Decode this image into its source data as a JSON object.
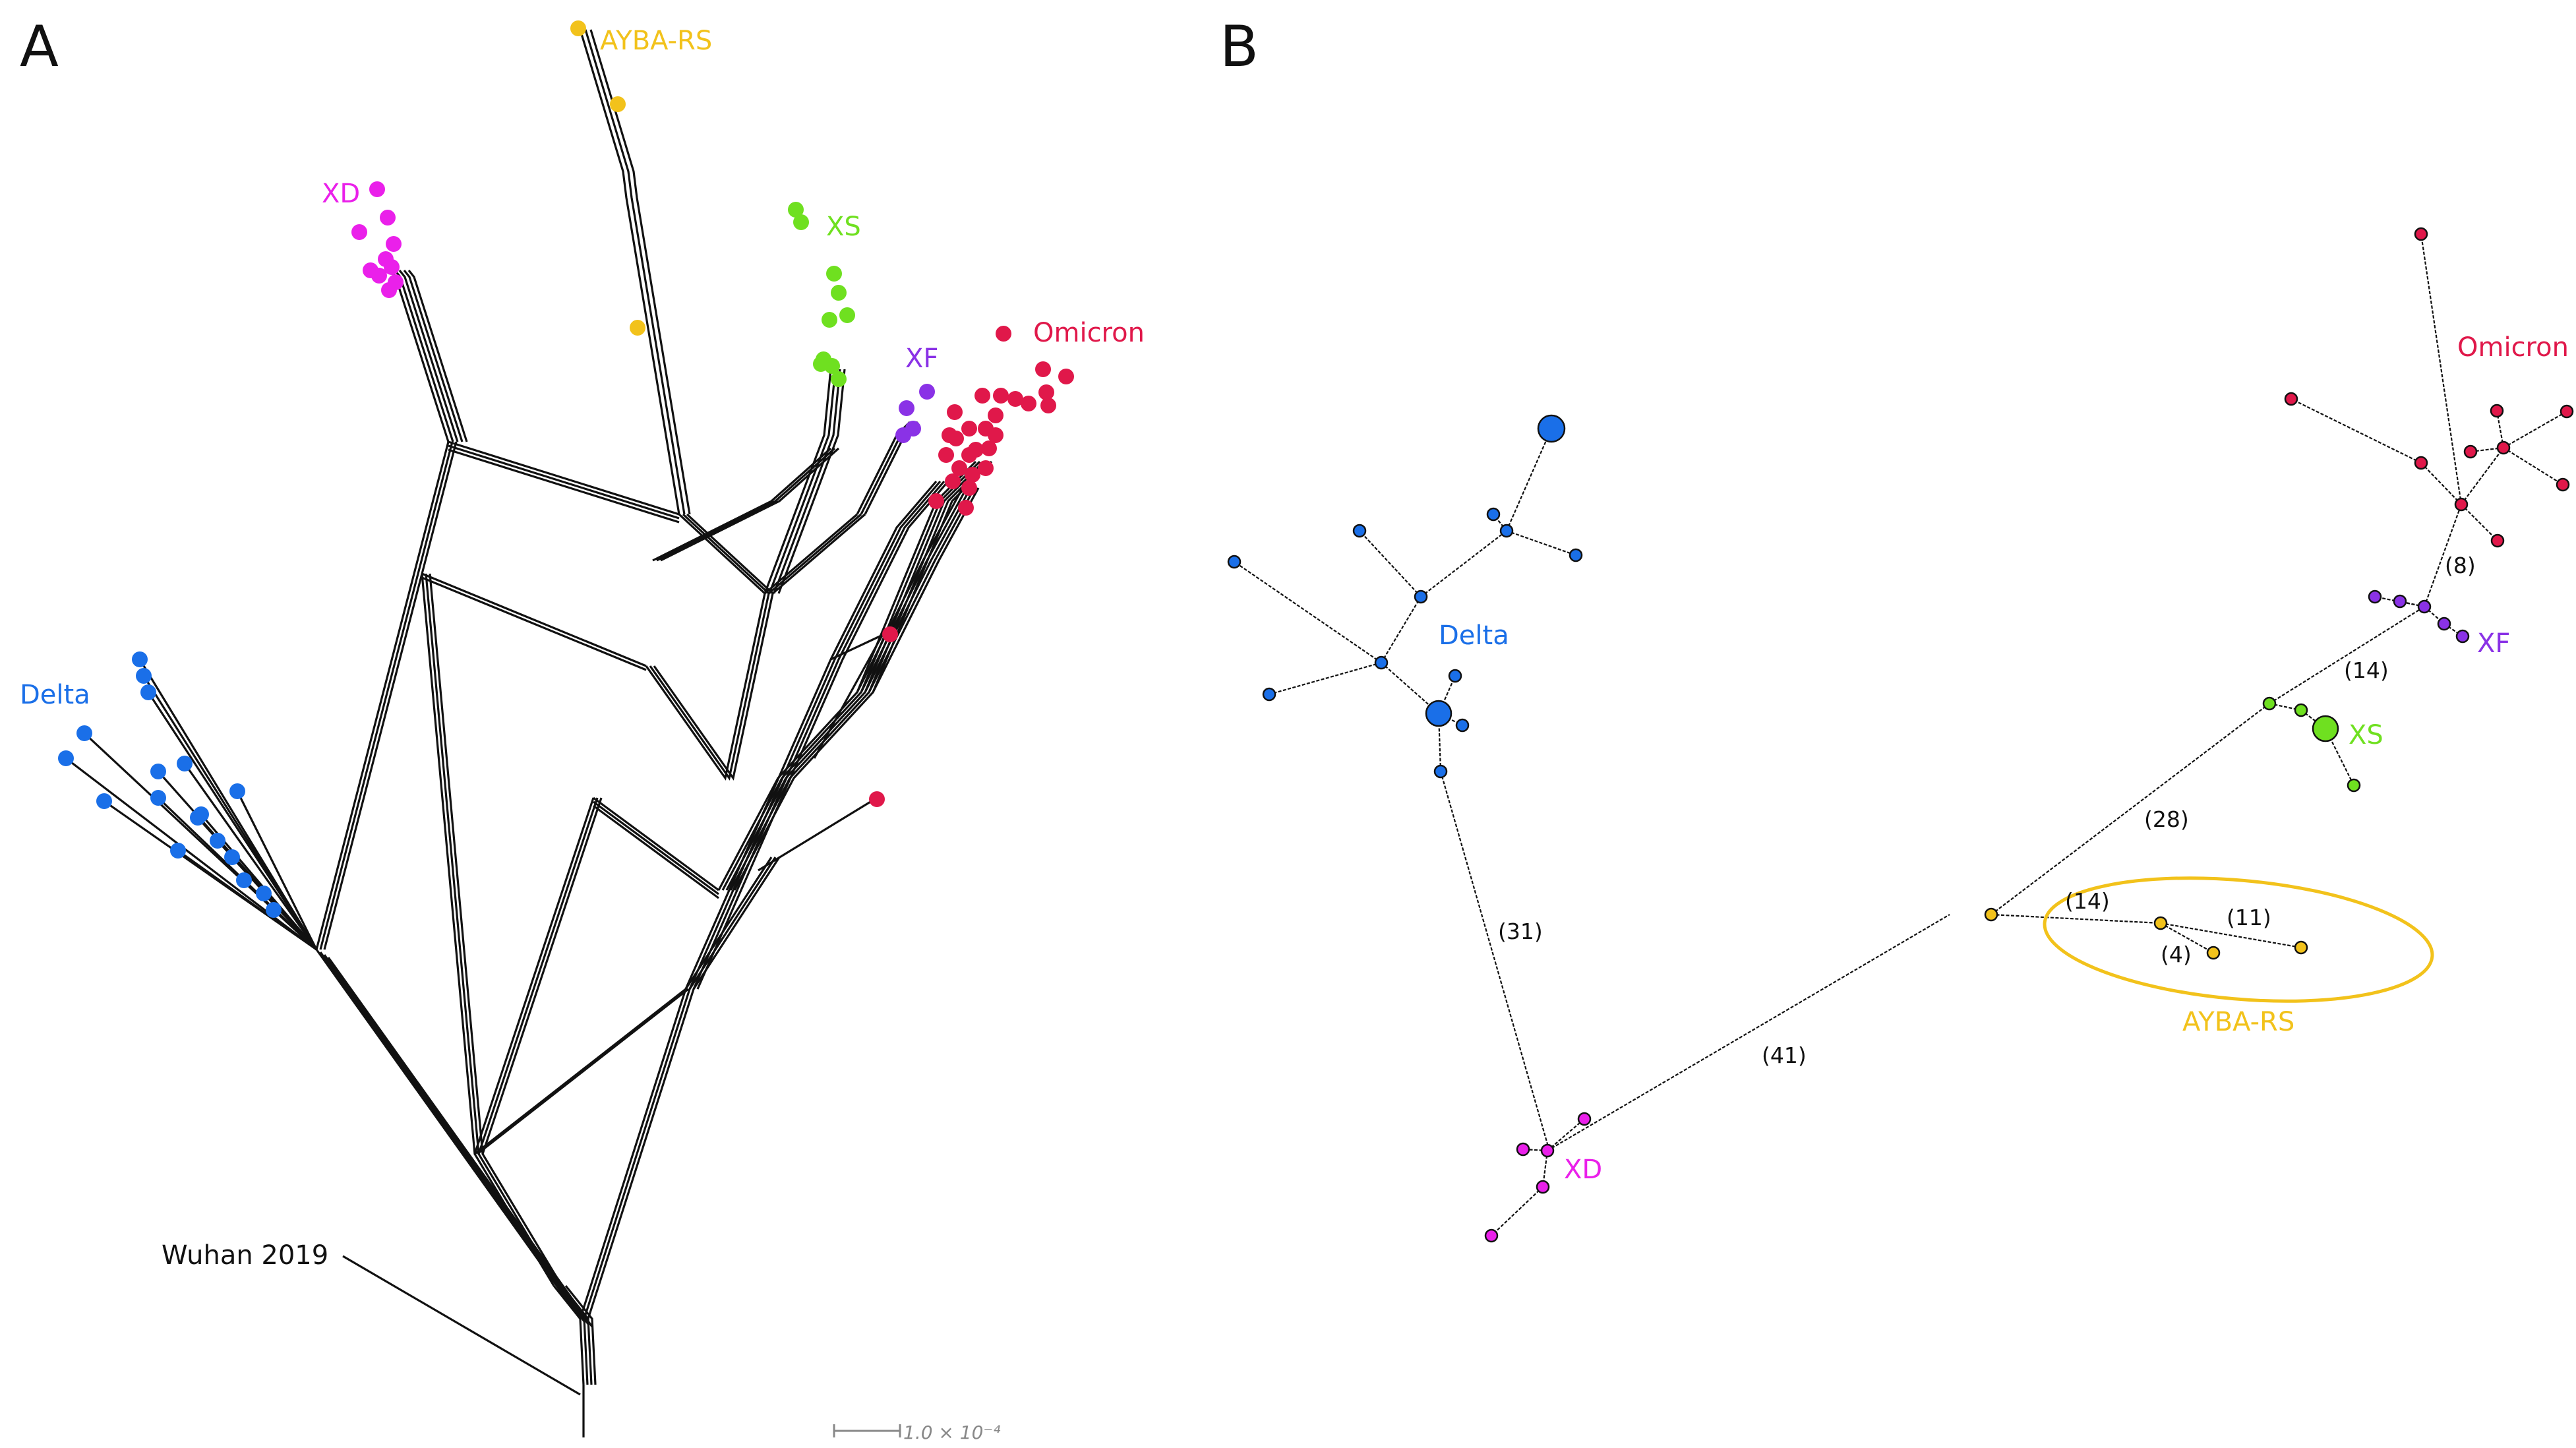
{
  "panels": {
    "a": {
      "letter": "A"
    },
    "b": {
      "letter": "B"
    }
  },
  "colors": {
    "delta": "#1a6fe8",
    "xd": "#ea20ea",
    "ayba": "#f2c21b",
    "xs": "#6fe020",
    "xf": "#8a32e6",
    "omicron": "#e0184a",
    "edge": "#111111"
  },
  "panel_a": {
    "clades": {
      "ayba": "AYBA-RS",
      "xd": "XD",
      "xs": "XS",
      "xf": "XF",
      "omicron": "Omicron",
      "delta": "Delta"
    },
    "root_label": "Wuhan 2019",
    "scale_bar": "1.0 × 10⁻⁴"
  },
  "panel_b": {
    "clades": {
      "delta": "Delta",
      "xd": "XD",
      "ayba": "AYBA-RS",
      "xs": "XS",
      "xf": "XF",
      "omicron": "Omicron"
    },
    "edge_labels": [
      "(31)",
      "(41)",
      "(28)",
      "(14)",
      "(14)",
      "(4)",
      "(11)",
      "(8)"
    ]
  }
}
